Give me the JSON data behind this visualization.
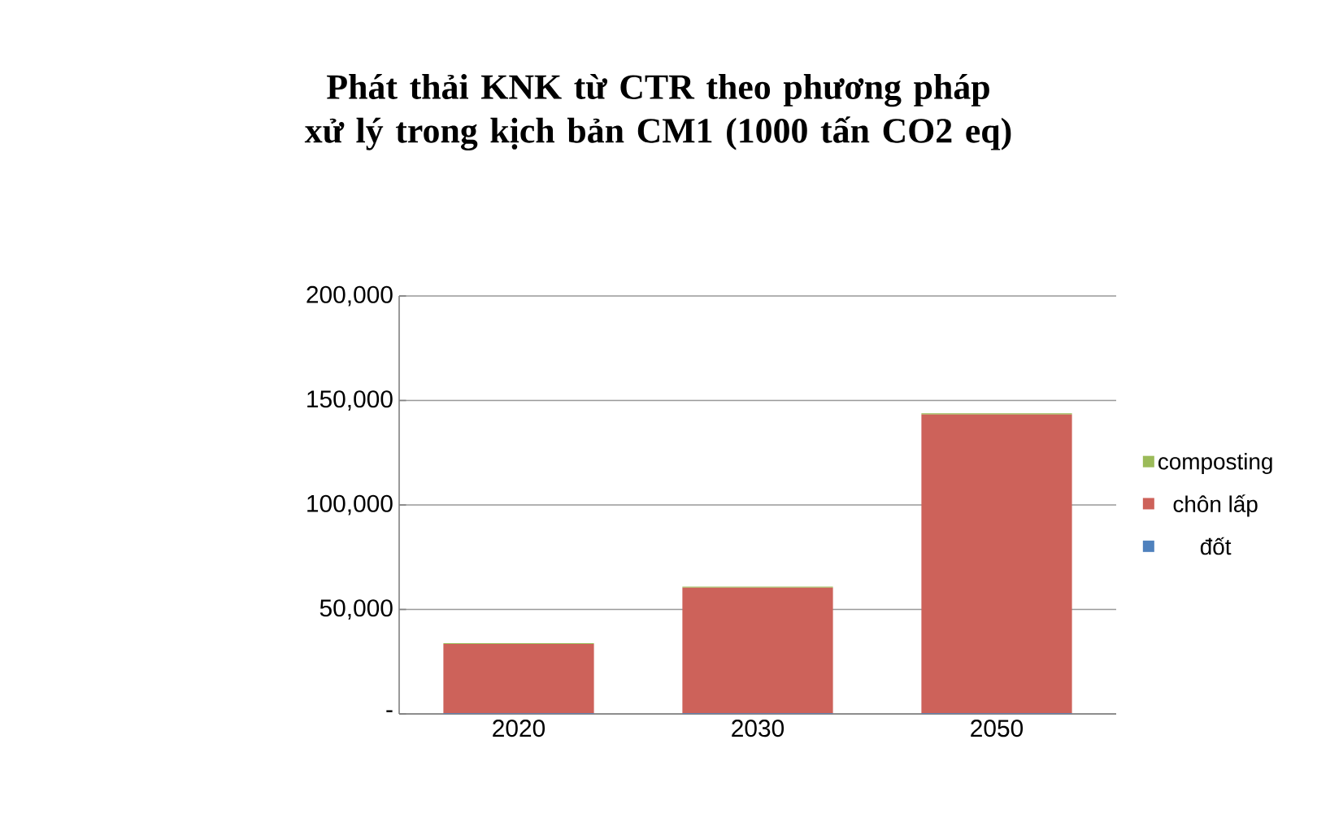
{
  "chart_data": {
    "type": "bar",
    "title": "Phát thải KNK từ CTR theo phương pháp xử lý trong kịch bản CM1 (1000 tấn CO2 eq)",
    "categories": [
      "2020",
      "2030",
      "2050"
    ],
    "stacked": true,
    "series": [
      {
        "name": "đốt",
        "color": "#4f81bd",
        "values": [
          300,
          300,
          300
        ]
      },
      {
        "name": "chôn lấp",
        "color": "#cd625a",
        "values": [
          33200,
          60100,
          143000
        ]
      },
      {
        "name": "composting",
        "color": "#9bbb59",
        "values": [
          400,
          500,
          600
        ]
      }
    ],
    "ylim": [
      0,
      200000
    ],
    "yticks": [
      {
        "value": 0,
        "label": "-"
      },
      {
        "value": 50000,
        "label": "50,000"
      },
      {
        "value": 100000,
        "label": "100,000"
      },
      {
        "value": 150000,
        "label": "150,000"
      },
      {
        "value": 200000,
        "label": "200,000"
      }
    ],
    "grid": "y",
    "legend": "right"
  }
}
